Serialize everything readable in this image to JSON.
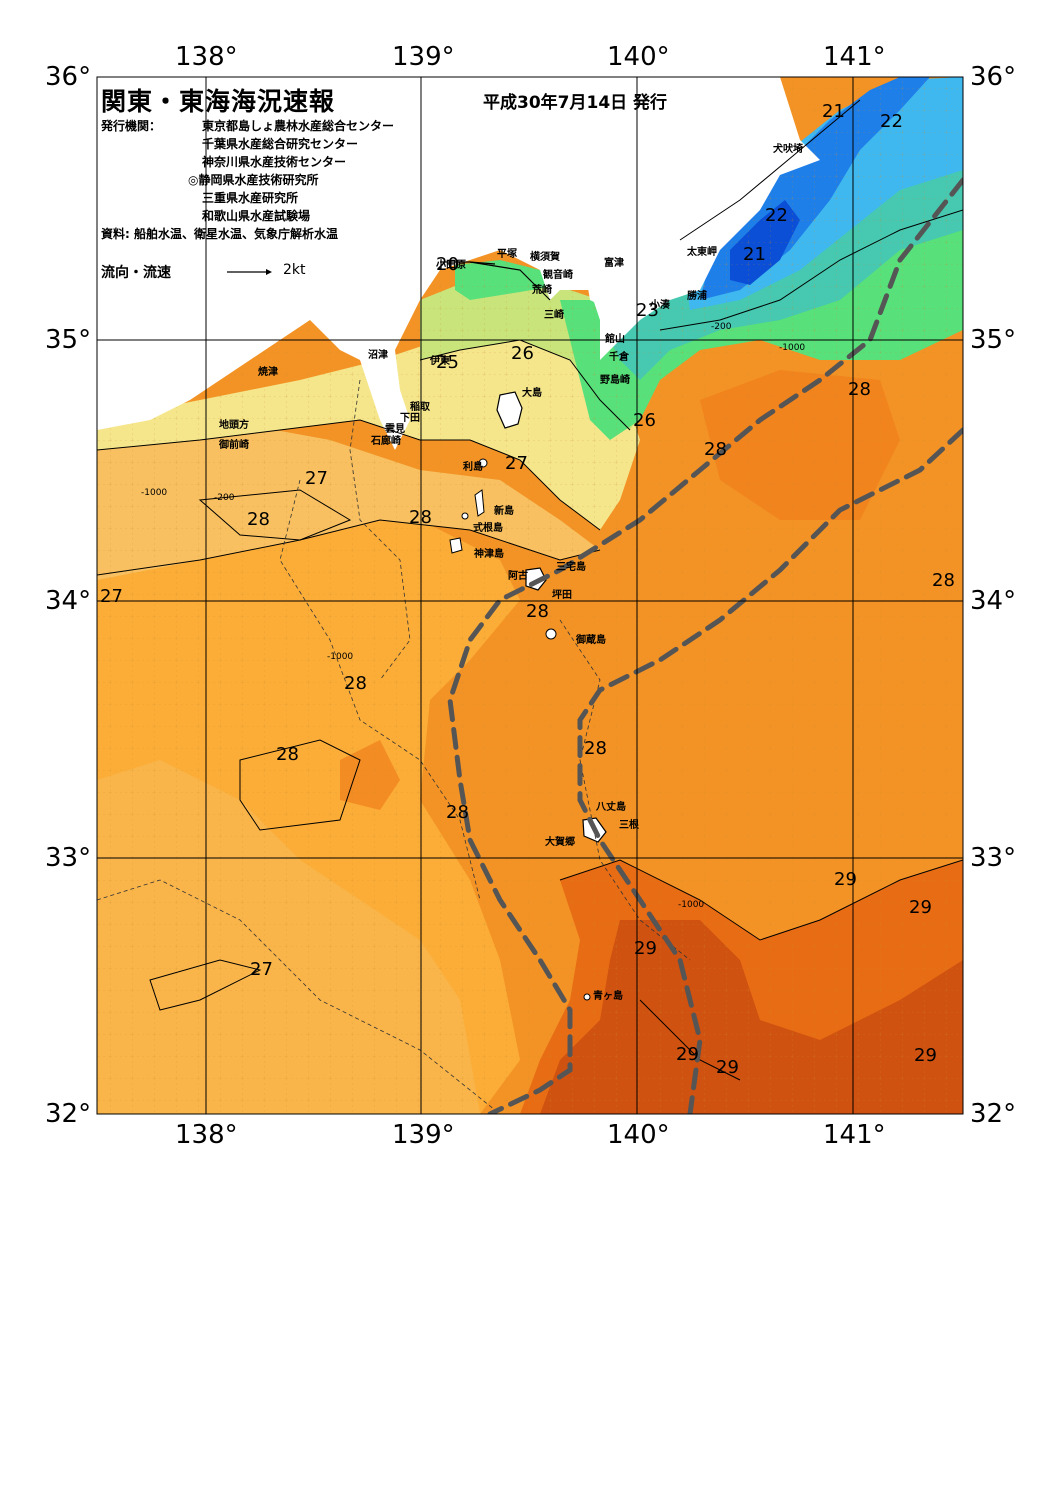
{
  "title": "関東・東海海況速報",
  "issued": "平成30年7月14日 発行",
  "issuer_label": "発行機関：",
  "issuers": [
    "東京都島しょ農林水産総合センター",
    "千葉県水産総合研究センター",
    "神奈川県水産技術センター",
    "◎静岡県水産技術研究所",
    "三重県水産研究所",
    "和歌山県水産試験場"
  ],
  "source": "資料: 船舶水温、衛星水温、気象庁解析水温",
  "flow_legend": {
    "label": "流向・流速",
    "unit": "2kt"
  },
  "axes": {
    "lon_labels": [
      "138°",
      "139°",
      "140°",
      "141°"
    ],
    "lat_labels": [
      "36°",
      "35°",
      "34°",
      "33°",
      "32°"
    ]
  },
  "colors": {
    "t20": "#0a4fd6",
    "t21": "#1f7fe8",
    "t22": "#3fb8f0",
    "t23": "#46c9b0",
    "t24": "#58e07a",
    "t25": "#c9e47a",
    "t26": "#f5e68c",
    "t27": "#f8c060",
    "t28": "#fbad38",
    "t28b": "#f39325",
    "t29": "#e86c14",
    "t29b": "#cf5210",
    "kuroshio_axis": "#555555",
    "land": "#ffffff"
  },
  "place_names": [
    {
      "name": "犬吠埼"
    },
    {
      "name": "太東岬"
    },
    {
      "name": "勝浦"
    },
    {
      "name": "小湊"
    },
    {
      "name": "富津"
    },
    {
      "name": "横須賀"
    },
    {
      "name": "観音崎"
    },
    {
      "name": "平塚"
    },
    {
      "name": "荒崎"
    },
    {
      "name": "三崎"
    },
    {
      "name": "小田原"
    },
    {
      "name": "館山"
    },
    {
      "name": "千倉"
    },
    {
      "name": "野島崎"
    },
    {
      "name": "沼津"
    },
    {
      "name": "伊東"
    },
    {
      "name": "焼津"
    },
    {
      "name": "稲取"
    },
    {
      "name": "下田"
    },
    {
      "name": "雲見"
    },
    {
      "name": "石廊崎"
    },
    {
      "name": "地頭方"
    },
    {
      "name": "御前崎"
    },
    {
      "name": "大島"
    },
    {
      "name": "利島"
    },
    {
      "name": "新島"
    },
    {
      "name": "式根島"
    },
    {
      "name": "神津島"
    },
    {
      "name": "三宅島"
    },
    {
      "name": "阿古"
    },
    {
      "name": "坪田"
    },
    {
      "name": "御蔵島"
    },
    {
      "name": "八丈島"
    },
    {
      "name": "三根"
    },
    {
      "name": "大賀郷"
    },
    {
      "name": "青ヶ島"
    }
  ],
  "isotherm_labels": [
    "21",
    "22",
    "22",
    "21",
    "23",
    "20",
    "25",
    "26",
    "26",
    "27",
    "27",
    "28",
    "28",
    "28",
    "28",
    "27",
    "28",
    "28",
    "28",
    "28",
    "28",
    "28",
    "27",
    "29",
    "29",
    "29",
    "29",
    "29",
    "29"
  ],
  "depth_labels": [
    "-200",
    "-1000"
  ]
}
